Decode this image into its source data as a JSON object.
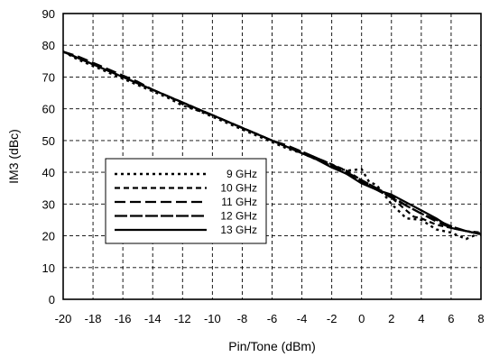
{
  "chart_data": {
    "type": "line",
    "title": "",
    "xlabel": "Pin/Tone (dBm)",
    "ylabel": "IM3 (dBc)",
    "xlim": [
      -20,
      8
    ],
    "ylim": [
      0,
      90
    ],
    "xticks": [
      -20,
      -18,
      -16,
      -14,
      -12,
      -10,
      -8,
      -6,
      -4,
      -2,
      0,
      2,
      4,
      6,
      8
    ],
    "yticks": [
      0,
      10,
      20,
      30,
      40,
      50,
      60,
      70,
      80,
      90
    ],
    "grid": true,
    "legend_position": "lower-left",
    "series": [
      {
        "name": "9 GHz",
        "style": "dotted",
        "x": [
          -20,
          -19,
          -18,
          -17,
          -16,
          -15,
          -14,
          -13,
          -12,
          -11,
          -10,
          -9,
          -8,
          -7,
          -6,
          -5,
          -4,
          -3,
          -2,
          -1,
          0,
          0.5,
          1,
          2,
          3,
          4,
          5,
          6,
          7,
          8
        ],
        "y": [
          78,
          75.5,
          73.5,
          71.5,
          69.5,
          67.5,
          65.5,
          63.5,
          61,
          59.5,
          57.5,
          55.5,
          53.5,
          51.5,
          49.5,
          47.5,
          46,
          44,
          42,
          40.5,
          41,
          37,
          36,
          30,
          25.5,
          25,
          22,
          21,
          19,
          21
        ]
      },
      {
        "name": "10 GHz",
        "style": "short-dash",
        "x": [
          -20,
          -19,
          -18,
          -17,
          -16,
          -15,
          -14,
          -13,
          -12,
          -11,
          -10,
          -9,
          -8,
          -7,
          -6,
          -5,
          -4,
          -3,
          -2,
          -1,
          0,
          1,
          2,
          3,
          3.5,
          4,
          5,
          6,
          7,
          8
        ],
        "y": [
          78,
          76,
          74,
          72,
          70,
          68,
          66,
          64,
          61.5,
          59.5,
          58,
          56,
          54,
          52,
          50,
          48,
          46.5,
          44.5,
          42.5,
          40.5,
          37.5,
          35,
          32,
          28,
          26,
          25.5,
          23.5,
          22.5,
          21.5,
          21
        ]
      },
      {
        "name": "11 GHz",
        "style": "long-dash",
        "x": [
          -20,
          -19,
          -18,
          -17,
          -16,
          -15,
          -14,
          -13,
          -12,
          -11,
          -10,
          -9,
          -8,
          -7,
          -6,
          -5,
          -4,
          -3,
          -2,
          -1,
          0,
          1,
          2,
          3,
          4,
          5,
          6,
          7,
          8
        ],
        "y": [
          78,
          76.5,
          74.5,
          72.5,
          70.5,
          68.5,
          66,
          64,
          62,
          60,
          58,
          56,
          54,
          52,
          50,
          48.5,
          46.5,
          44.5,
          42.5,
          40,
          37.5,
          35,
          32.5,
          29.5,
          27,
          24.5,
          22.5,
          21.5,
          20.5
        ]
      },
      {
        "name": "12 GHz",
        "style": "dash-gap",
        "x": [
          -20,
          -19,
          -18,
          -17,
          -16,
          -15,
          -14,
          -13,
          -12,
          -11,
          -10,
          -9,
          -8,
          -7,
          -6,
          -5,
          -4,
          -3,
          -2,
          -1,
          0,
          1,
          2,
          3,
          4,
          5,
          6,
          7,
          8
        ],
        "y": [
          78,
          76,
          74,
          72,
          70,
          68,
          66,
          64,
          62,
          60,
          58,
          56,
          54,
          52,
          50,
          48,
          46,
          44,
          42,
          39.5,
          37,
          34.5,
          32,
          29.5,
          27,
          25,
          23,
          21.5,
          20.5
        ]
      },
      {
        "name": "13 GHz",
        "style": "solid",
        "x": [
          -20,
          -19,
          -18,
          -17,
          -16,
          -15,
          -14,
          -13,
          -12,
          -11,
          -10,
          -9,
          -8,
          -7,
          -6,
          -5,
          -4,
          -3,
          -2,
          -1,
          0,
          1,
          2,
          3,
          4,
          5,
          6,
          7,
          8
        ],
        "y": [
          78,
          76,
          74,
          72,
          70,
          68,
          66,
          64,
          62,
          60,
          58,
          56,
          54,
          52,
          50,
          48,
          46,
          44,
          41.5,
          39.5,
          36.5,
          34.5,
          33,
          30.5,
          28,
          25.5,
          22.5,
          21.5,
          20.5
        ]
      }
    ]
  }
}
